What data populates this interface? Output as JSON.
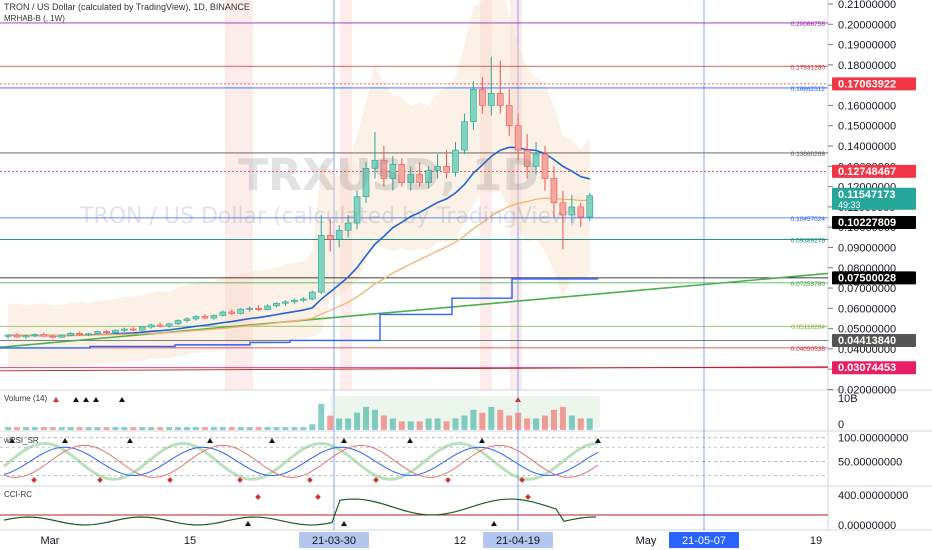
{
  "header": {
    "title": "TRON / US Dollar (calculated by TradingView), 1D, BINANCE",
    "indicator": "MRHAB-B (, 1W)"
  },
  "watermark": {
    "symbol": "TRXUSD, 1D",
    "name": "TRON / US Dollar (calculated by TradingView)"
  },
  "colors": {
    "up": "#26a69a",
    "down": "#ef5350",
    "green_line": "#4caf50",
    "blue_line": "#2962ff",
    "price_tag": "#f23645",
    "hline": "#d32f2f"
  },
  "chart_data": [
    {
      "type": "line",
      "panel": "price",
      "axis": {
        "ylim": [
          0.02,
          0.21
        ],
        "yticks": [
          "0.02000000",
          "0.03000000",
          "0.04000000",
          "0.05000000",
          "0.06000000",
          "0.07000000",
          "0.08000000",
          "0.09000000",
          "0.10000000",
          "0.11000000",
          "0.12000000",
          "0.13000000",
          "0.14000000",
          "0.15000000",
          "0.16000000",
          "0.17000000",
          "0.18000000",
          "0.19000000",
          "0.20000000",
          "0.21000000"
        ],
        "xticks": [
          {
            "label": "Mar",
            "date": "2021-03-01"
          },
          {
            "label": "15",
            "date": "2021-03-15"
          },
          {
            "label": "21-03-30",
            "date": "2021-03-30",
            "highlight": true
          },
          {
            "label": "12",
            "date": "2021-04-12"
          },
          {
            "label": "21-04-19",
            "date": "2021-04-19",
            "highlight": true
          },
          {
            "label": "May",
            "date": "2021-05-01"
          },
          {
            "label": "21-05-07",
            "date": "2021-05-07",
            "highlight": true
          },
          {
            "label": "19",
            "date": "2021-05-19"
          }
        ]
      },
      "candles": [
        [
          0.0462,
          0.0474,
          0.0451,
          0.0468
        ],
        [
          0.0468,
          0.0478,
          0.0455,
          0.0459
        ],
        [
          0.0459,
          0.047,
          0.045,
          0.0465
        ],
        [
          0.0465,
          0.0476,
          0.0458,
          0.0471
        ],
        [
          0.0471,
          0.048,
          0.046,
          0.0463
        ],
        [
          0.0463,
          0.0469,
          0.0452,
          0.0458
        ],
        [
          0.0458,
          0.0472,
          0.0454,
          0.0468
        ],
        [
          0.0468,
          0.0482,
          0.0462,
          0.0477
        ],
        [
          0.0477,
          0.0486,
          0.0466,
          0.047
        ],
        [
          0.047,
          0.0479,
          0.0463,
          0.0475
        ],
        [
          0.0475,
          0.049,
          0.047,
          0.0486
        ],
        [
          0.0486,
          0.0494,
          0.0475,
          0.048
        ],
        [
          0.048,
          0.0497,
          0.0476,
          0.0492
        ],
        [
          0.0492,
          0.0505,
          0.0484,
          0.0498
        ],
        [
          0.0498,
          0.0508,
          0.0488,
          0.0493
        ],
        [
          0.0493,
          0.0512,
          0.049,
          0.0508
        ],
        [
          0.0508,
          0.0524,
          0.05,
          0.0518
        ],
        [
          0.0518,
          0.053,
          0.0506,
          0.0512
        ],
        [
          0.0512,
          0.0528,
          0.0504,
          0.0524
        ],
        [
          0.0524,
          0.0546,
          0.0518,
          0.054
        ],
        [
          0.054,
          0.0556,
          0.053,
          0.0548
        ],
        [
          0.0548,
          0.0566,
          0.054,
          0.056
        ],
        [
          0.056,
          0.0572,
          0.0546,
          0.0552
        ],
        [
          0.0552,
          0.057,
          0.0545,
          0.0565
        ],
        [
          0.0565,
          0.059,
          0.056,
          0.0582
        ],
        [
          0.0582,
          0.0594,
          0.0566,
          0.0575
        ],
        [
          0.0575,
          0.0602,
          0.057,
          0.0596
        ],
        [
          0.0596,
          0.061,
          0.0584,
          0.06
        ],
        [
          0.06,
          0.0616,
          0.0588,
          0.0594
        ],
        [
          0.0594,
          0.062,
          0.059,
          0.0612
        ],
        [
          0.0612,
          0.063,
          0.0604,
          0.0625
        ],
        [
          0.0625,
          0.064,
          0.0612,
          0.0632
        ],
        [
          0.0632,
          0.0648,
          0.0622,
          0.064
        ],
        [
          0.064,
          0.0655,
          0.063,
          0.0646
        ],
        [
          0.0646,
          0.0688,
          0.064,
          0.068
        ],
        [
          0.068,
          0.106,
          0.067,
          0.096
        ],
        [
          0.096,
          0.104,
          0.088,
          0.094
        ],
        [
          0.094,
          0.101,
          0.09,
          0.0985
        ],
        [
          0.0985,
          0.106,
          0.095,
          0.102
        ],
        [
          0.102,
          0.118,
          0.099,
          0.115
        ],
        [
          0.115,
          0.132,
          0.112,
          0.129
        ],
        [
          0.129,
          0.147,
          0.124,
          0.133
        ],
        [
          0.133,
          0.14,
          0.12,
          0.124
        ],
        [
          0.124,
          0.135,
          0.118,
          0.131
        ],
        [
          0.131,
          0.134,
          0.12,
          0.122
        ],
        [
          0.122,
          0.13,
          0.118,
          0.126
        ],
        [
          0.126,
          0.132,
          0.12,
          0.122
        ],
        [
          0.122,
          0.13,
          0.119,
          0.128
        ],
        [
          0.128,
          0.136,
          0.124,
          0.13
        ],
        [
          0.13,
          0.138,
          0.124,
          0.127
        ],
        [
          0.127,
          0.142,
          0.125,
          0.138
        ],
        [
          0.138,
          0.156,
          0.136,
          0.152
        ],
        [
          0.152,
          0.172,
          0.148,
          0.168
        ],
        [
          0.168,
          0.174,
          0.156,
          0.16
        ],
        [
          0.16,
          0.184,
          0.155,
          0.166
        ],
        [
          0.166,
          0.182,
          0.156,
          0.16
        ],
        [
          0.16,
          0.168,
          0.145,
          0.15
        ],
        [
          0.15,
          0.156,
          0.133,
          0.138
        ],
        [
          0.138,
          0.146,
          0.124,
          0.13
        ],
        [
          0.13,
          0.142,
          0.126,
          0.136
        ],
        [
          0.136,
          0.14,
          0.118,
          0.124
        ],
        [
          0.124,
          0.13,
          0.105,
          0.112
        ],
        [
          0.112,
          0.118,
          0.089,
          0.106
        ],
        [
          0.106,
          0.116,
          0.102,
          0.11
        ],
        [
          0.11,
          0.112,
          0.1,
          0.105
        ],
        [
          0.105,
          0.117,
          0.103,
          0.1155
        ]
      ],
      "hlines": [
        {
          "value": 0.20066756,
          "label": "0.20066756",
          "color": "#9c27b0"
        },
        {
          "value": 0.1793126,
          "label": "0.17931260",
          "color": "#d32f2f"
        },
        {
          "value": 0.16862512,
          "label": "0.16862512",
          "color": "#2962ff"
        },
        {
          "value": 0.13660268,
          "label": "0.13660268",
          "color": "#555555"
        },
        {
          "value": 0.10457024,
          "label": "0.10457024",
          "color": "#2962ff"
        },
        {
          "value": 0.09389276,
          "label": "0.09389276",
          "color": "#00897b"
        },
        {
          "value": 0.0725378,
          "label": "0.07253780",
          "color": "#43a047"
        },
        {
          "value": 0.05118284,
          "label": "0.05118284",
          "color": "#7cb342"
        },
        {
          "value": 0.04050536,
          "label": "0.04050536",
          "color": "#d32f2f"
        }
      ],
      "extra_lines": [
        {
          "value": 0.17063922,
          "color": "#f23645"
        },
        {
          "value": 0.12748467,
          "color": "#f23645"
        },
        {
          "value": 0.07500028,
          "color": "#000000"
        },
        {
          "value": 0.0441384,
          "color": "#555555"
        },
        {
          "value": 0.03074453,
          "color": "#e91e63"
        }
      ],
      "price_tags": [
        {
          "value": 0.17063922,
          "label": "0.17063922",
          "bg": "#f23645",
          "fg": "#ffffff"
        },
        {
          "value": 0.12748467,
          "label": "0.12748467",
          "bg": "#f23645",
          "fg": "#ffffff"
        },
        {
          "value": 0.11547173,
          "label": "0.11547173",
          "sub": "49:33",
          "bg": "#26a69a",
          "fg": "#ffffff"
        },
        {
          "value": 0.10227809,
          "label": "0.10227809",
          "bg": "#000000",
          "fg": "#ffffff"
        },
        {
          "value": 0.07500028,
          "label": "0.07500028",
          "bg": "#000000",
          "fg": "#ffffff"
        },
        {
          "value": 0.0441384,
          "label": "0.04413840",
          "bg": "#555555",
          "fg": "#ffffff"
        },
        {
          "value": 0.03074453,
          "label": "0.03074453",
          "bg": "#e91e63",
          "fg": "#ffffff"
        }
      ]
    },
    {
      "type": "bar",
      "panel": "volume",
      "title": "Volume (14)",
      "axis": {
        "yticks": [
          "10B",
          "0"
        ]
      },
      "values": [
        1,
        1,
        1,
        1,
        1,
        1,
        1,
        1,
        1,
        1,
        1,
        1,
        1,
        1,
        1,
        1,
        1,
        1,
        1,
        1,
        1,
        1,
        1,
        1,
        1,
        1,
        1,
        1,
        1,
        1,
        1,
        1,
        1,
        1,
        2,
        9,
        5,
        4,
        4,
        6,
        8,
        7,
        5,
        4,
        3,
        3,
        3,
        4,
        4,
        3,
        4,
        5,
        7,
        6,
        8,
        7,
        5,
        6,
        4,
        4,
        5,
        7,
        8,
        5,
        4,
        4
      ]
    },
    {
      "type": "line",
      "panel": "wrsi",
      "title": "wRSI_SR",
      "axis": {
        "yticks": [
          "100.00000000",
          "50.00000000",
          "0.00000000"
        ]
      },
      "series": []
    },
    {
      "type": "line",
      "panel": "cci",
      "title": "CCI-RC",
      "axis": {
        "yticks": [
          "400.00000000",
          "0.00000000"
        ]
      },
      "series": []
    }
  ]
}
